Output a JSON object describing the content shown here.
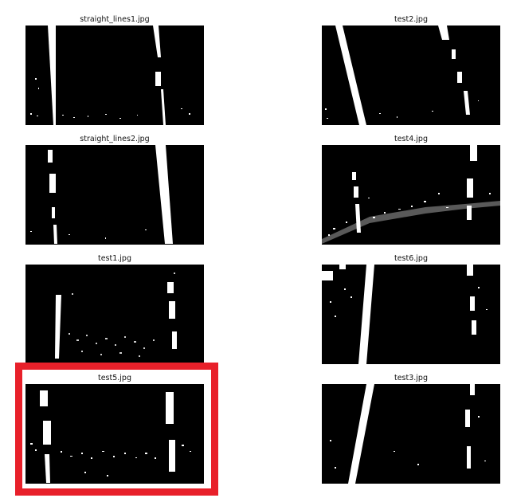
{
  "figure": {
    "panels": [
      {
        "id": "p1",
        "title": "straight_lines1.jpg"
      },
      {
        "id": "p2",
        "title": "test2.jpg"
      },
      {
        "id": "p3",
        "title": "straight_lines2.jpg"
      },
      {
        "id": "p4",
        "title": "test4.jpg"
      },
      {
        "id": "p5",
        "title": "test1.jpg"
      },
      {
        "id": "p6",
        "title": "test6.jpg"
      },
      {
        "id": "p7",
        "title": "test5.jpg"
      },
      {
        "id": "p8",
        "title": "test3.jpg"
      }
    ],
    "highlight": {
      "color": "#e8202a",
      "panel": "test5.jpg"
    }
  },
  "colors": {
    "background": "#ffffff",
    "image_bg": "#000000",
    "lane_pixels": "#ffffff"
  }
}
